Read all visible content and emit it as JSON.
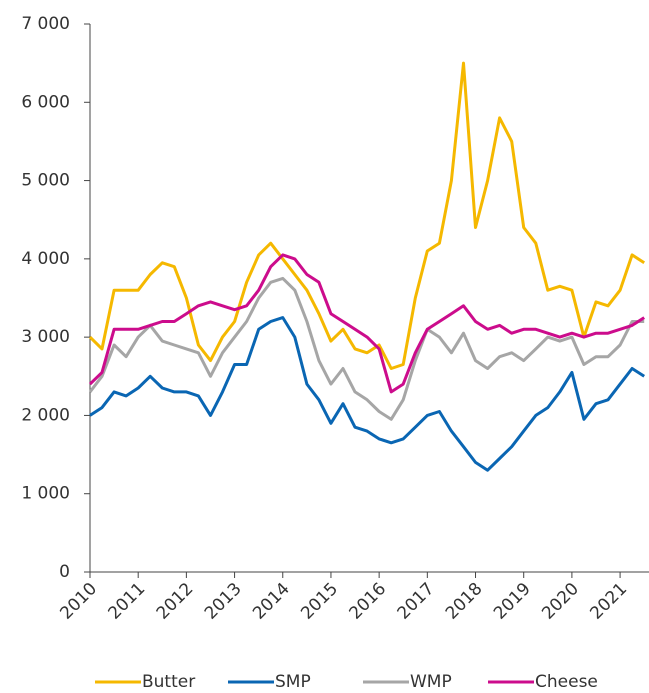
{
  "chart_data": {
    "type": "line",
    "x": [
      2010,
      2010.25,
      2010.5,
      2010.75,
      2011,
      2011.25,
      2011.5,
      2011.75,
      2012,
      2012.25,
      2012.5,
      2012.75,
      2013,
      2013.25,
      2013.5,
      2013.75,
      2014,
      2014.25,
      2014.5,
      2014.75,
      2015,
      2015.25,
      2015.5,
      2015.75,
      2016,
      2016.25,
      2016.5,
      2016.75,
      2017,
      2017.25,
      2017.5,
      2017.75,
      2018,
      2018.25,
      2018.5,
      2018.75,
      2019,
      2019.25,
      2019.5,
      2019.75,
      2020,
      2020.25,
      2020.5,
      2020.75,
      2021,
      2021.25,
      2021.5
    ],
    "series": [
      {
        "name": "Butter",
        "color": "#f5b800",
        "values": [
          3000,
          2850,
          3600,
          3600,
          3600,
          3800,
          3950,
          3900,
          3500,
          2900,
          2700,
          3000,
          3200,
          3700,
          4050,
          4200,
          4000,
          3800,
          3600,
          3300,
          2950,
          3100,
          2850,
          2800,
          2900,
          2600,
          2650,
          3500,
          4100,
          4200,
          5000,
          6500,
          4400,
          5000,
          5800,
          5500,
          4400,
          4200,
          3600,
          3650,
          3600,
          3000,
          3450,
          3400,
          3600,
          4050,
          3950
        ]
      },
      {
        "name": "SMP",
        "color": "#0a66b3",
        "values": [
          2000,
          2100,
          2300,
          2250,
          2350,
          2500,
          2350,
          2300,
          2300,
          2250,
          2000,
          2300,
          2650,
          2650,
          3100,
          3200,
          3250,
          3000,
          2400,
          2200,
          1900,
          2150,
          1850,
          1800,
          1700,
          1650,
          1700,
          1850,
          2000,
          2050,
          1800,
          1600,
          1400,
          1300,
          1450,
          1600,
          1800,
          2000,
          2100,
          2300,
          2550,
          1950,
          2150,
          2200,
          2400,
          2600,
          2500
        ]
      },
      {
        "name": "WMP",
        "color": "#a6a6a6",
        "values": [
          2300,
          2500,
          2900,
          2750,
          3000,
          3150,
          2950,
          2900,
          2850,
          2800,
          2500,
          2800,
          3000,
          3200,
          3500,
          3700,
          3750,
          3600,
          3200,
          2700,
          2400,
          2600,
          2300,
          2200,
          2050,
          1950,
          2200,
          2700,
          3100,
          3000,
          2800,
          3050,
          2700,
          2600,
          2750,
          2800,
          2700,
          2850,
          3000,
          2950,
          3000,
          2650,
          2750,
          2750,
          2900,
          3200,
          3200
        ]
      },
      {
        "name": "Cheese",
        "color": "#cc0c8c",
        "values": [
          2400,
          2550,
          3100,
          3100,
          3100,
          3150,
          3200,
          3200,
          3300,
          3400,
          3450,
          3400,
          3350,
          3400,
          3600,
          3900,
          4050,
          4000,
          3800,
          3700,
          3300,
          3200,
          3100,
          3000,
          2850,
          2300,
          2400,
          2800,
          3100,
          3200,
          3300,
          3400,
          3200,
          3100,
          3150,
          3050,
          3100,
          3100,
          3050,
          3000,
          3050,
          3000,
          3050,
          3050,
          3100,
          3150,
          3250
        ]
      }
    ],
    "xlim": [
      2010,
      2021.6
    ],
    "xticks": [
      2010,
      2011,
      2012,
      2013,
      2014,
      2015,
      2016,
      2017,
      2018,
      2019,
      2020,
      2021
    ],
    "ylim": [
      0,
      7000
    ],
    "yticks": [
      0,
      {
        "value": 1000,
        "label": "1 000"
      },
      {
        "value": 2000,
        "label": "2 000"
      },
      {
        "value": 3000,
        "label": "3 000"
      },
      {
        "value": 4000,
        "label": "4 000"
      },
      {
        "value": 5000,
        "label": "5 000"
      },
      {
        "value": 6000,
        "label": "6 000"
      },
      {
        "value": 7000,
        "label": "7 000"
      }
    ],
    "grid": false
  }
}
